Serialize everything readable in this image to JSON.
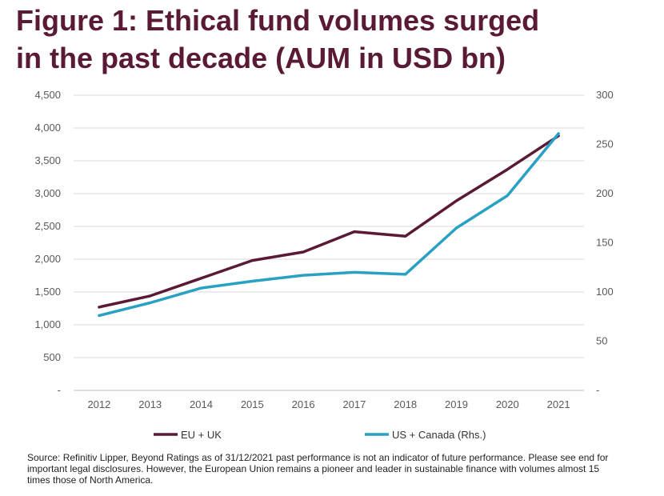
{
  "title_lines": [
    "Figure 1: Ethical fund volumes surged",
    "in the past decade (AUM in USD bn)"
  ],
  "source_lines": [
    "Source: Refinitiv Lipper, Beyond Ratings as of 31/12/2021 past performance is not an indicator of future performance. Please see end for",
    "important legal disclosures. However, the European Union remains a pioneer and leader in sustainable finance with volumes almost 15",
    "times those of North America."
  ],
  "chart_data": {
    "type": "line",
    "title": "Figure 1: Ethical fund volumes surged in the past decade (AUM in USD bn)",
    "categories": [
      "2012",
      "2013",
      "2014",
      "2015",
      "2016",
      "2017",
      "2018",
      "2019",
      "2020",
      "2021"
    ],
    "series": [
      {
        "name": "EU + UK",
        "axis": "left",
        "color": "#5a1a36",
        "values": [
          1270,
          1440,
          1710,
          1980,
          2110,
          2420,
          2350,
          2890,
          3370,
          3880
        ]
      },
      {
        "name": "US + Canada (Rhs.)",
        "axis": "right",
        "color": "#2aa1c3",
        "values": [
          76,
          89,
          104,
          111,
          117,
          120,
          118,
          165,
          198,
          261
        ]
      }
    ],
    "y_left": {
      "lim": [
        0,
        4500
      ],
      "ticks": [
        {
          "v": 0,
          "label": "-"
        },
        {
          "v": 500,
          "label": "500"
        },
        {
          "v": 1000,
          "label": "1,000"
        },
        {
          "v": 1500,
          "label": "1,500"
        },
        {
          "v": 2000,
          "label": "2,000"
        },
        {
          "v": 2500,
          "label": "2,500"
        },
        {
          "v": 3000,
          "label": "3,000"
        },
        {
          "v": 3500,
          "label": "3,500"
        },
        {
          "v": 4000,
          "label": "4,000"
        },
        {
          "v": 4500,
          "label": "4,500"
        }
      ]
    },
    "y_right": {
      "lim": [
        0,
        300
      ],
      "ticks": [
        {
          "v": 0,
          "label": "-"
        },
        {
          "v": 50,
          "label": "50"
        },
        {
          "v": 100,
          "label": "100"
        },
        {
          "v": 150,
          "label": "150"
        },
        {
          "v": 200,
          "label": "200"
        },
        {
          "v": 250,
          "label": "250"
        },
        {
          "v": 300,
          "label": "300"
        }
      ]
    },
    "grid": true,
    "legend_position": "bottom"
  }
}
